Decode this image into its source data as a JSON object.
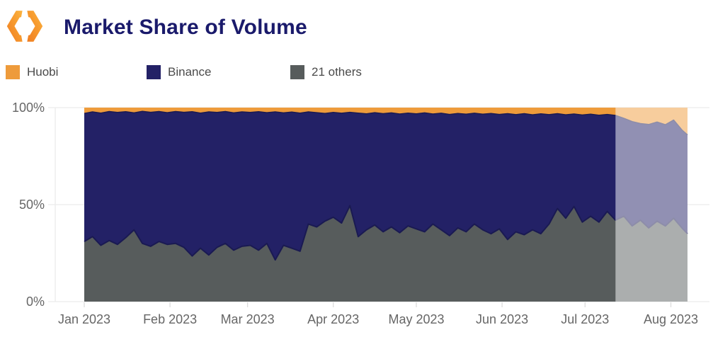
{
  "header": {
    "title": "Market Share of Volume",
    "logo": "hexagon-brackets-logo"
  },
  "legend": {
    "items": [
      {
        "label": "Huobi",
        "color": "#EE9B3B"
      },
      {
        "label": "Binance",
        "color": "#232166"
      },
      {
        "label": "21 others",
        "color": "#575C5C"
      }
    ]
  },
  "chart_data": {
    "type": "area",
    "stacked": true,
    "title": "Market Share of Volume",
    "xlabel": "",
    "ylabel": "",
    "unit": "%",
    "ylim": [
      0,
      100
    ],
    "grid": "horizontal",
    "legend_position": "top",
    "x_axis_note": "daily data, days counted from Jan 1 2023 through Aug 7 2023",
    "days": [
      0,
      3,
      6,
      9,
      12,
      15,
      18,
      21,
      24,
      27,
      30,
      33,
      36,
      39,
      42,
      45,
      48,
      51,
      54,
      57,
      60,
      63,
      66,
      69,
      72,
      75,
      78,
      81,
      84,
      87,
      90,
      93,
      96,
      99,
      102,
      105,
      108,
      111,
      114,
      117,
      120,
      123,
      126,
      129,
      132,
      135,
      138,
      141,
      144,
      147,
      150,
      153,
      156,
      159,
      162,
      165,
      168,
      171,
      174,
      177,
      180,
      183,
      186,
      189,
      192,
      195,
      198,
      201,
      204,
      207,
      210,
      213,
      216,
      218
    ],
    "series": [
      {
        "name": "21 others",
        "color": "#575C5C",
        "stack_top_pct": [
          31,
          33.5,
          29,
          31.5,
          29.5,
          33,
          37,
          30,
          28.5,
          31,
          29.5,
          30,
          28,
          23.5,
          27.5,
          24,
          28,
          30,
          26.5,
          28.5,
          29,
          26.5,
          30,
          21.5,
          29,
          27.5,
          26,
          40,
          38.5,
          41.5,
          43.5,
          40.5,
          49.5,
          33.5,
          37,
          39.5,
          36,
          38.5,
          35.5,
          39,
          37.5,
          36,
          40,
          37,
          34,
          38,
          36,
          40,
          37,
          35,
          37.5,
          32,
          36,
          34.5,
          37,
          35,
          40,
          48,
          43,
          49,
          41,
          44,
          41,
          46.5,
          42,
          44,
          39,
          42,
          38,
          41.5,
          39,
          43,
          38,
          35
        ]
      },
      {
        "name": "Binance",
        "color": "#232166",
        "stack_top_pct": [
          97,
          97.8,
          97.2,
          98,
          97.5,
          97.9,
          97.3,
          98.1,
          97.6,
          98,
          97.4,
          98,
          97.6,
          97.9,
          97.2,
          97.8,
          97.5,
          98,
          97.3,
          97.8,
          97.5,
          97.9,
          97.4,
          97.8,
          97.3,
          97.7,
          97.2,
          97.8,
          97.4,
          97,
          97.5,
          97.1,
          97.6,
          97.2,
          96.8,
          97.4,
          96.9,
          97.3,
          96.7,
          97.2,
          96.8,
          97.3,
          96.7,
          97.1,
          96.5,
          97,
          96.6,
          97.1,
          96.6,
          97,
          96.5,
          96.9,
          96.4,
          96.9,
          96.3,
          96.8,
          96.4,
          96.9,
          96.3,
          96.7,
          96.2,
          96.6,
          96.1,
          96.5,
          96,
          94.5,
          92.8,
          91.8,
          91.3,
          92.6,
          91.2,
          93.6,
          88.5,
          86
        ]
      },
      {
        "name": "Huobi",
        "color": "#EE9B3B",
        "stack_top_pct": 100
      }
    ],
    "x_ticks": [
      {
        "day": 0,
        "label": "Jan 2023"
      },
      {
        "day": 31,
        "label": "Feb 2023"
      },
      {
        "day": 59,
        "label": "Mar 2023"
      },
      {
        "day": 90,
        "label": "Apr 2023"
      },
      {
        "day": 120,
        "label": "May 2023"
      },
      {
        "day": 151,
        "label": "Jun 2023"
      },
      {
        "day": 181,
        "label": "Jul 2023"
      },
      {
        "day": 212,
        "label": "Aug 2023"
      }
    ],
    "y_ticks": [
      {
        "value": 100,
        "label": "100%"
      },
      {
        "value": 50,
        "label": "50%"
      },
      {
        "value": 0,
        "label": "0%"
      }
    ],
    "highlight_window": {
      "start_day": 192,
      "end_day": 218,
      "overlay_color": "rgba(255,255,255,0.5)"
    },
    "colors": {
      "boundary_stroke": "#1a1a52",
      "gridline": "#ececec",
      "tick_mark": "#dcdcdc",
      "axis_text": "#666666"
    }
  }
}
